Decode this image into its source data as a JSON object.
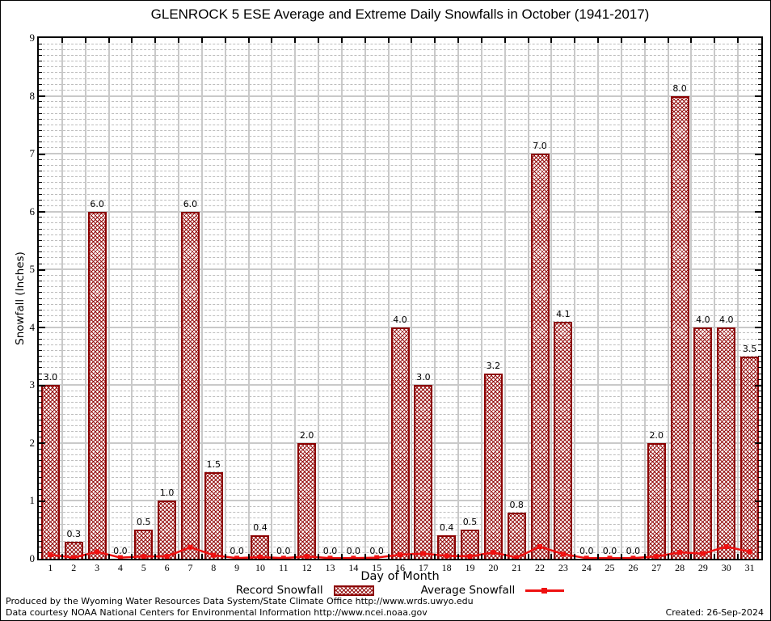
{
  "title": "GLENROCK 5 ESE Average and Extreme Daily Snowfalls in October (1941-2017)",
  "chart_data": {
    "type": "bar",
    "x": [
      1,
      2,
      3,
      4,
      5,
      6,
      7,
      8,
      9,
      10,
      11,
      12,
      13,
      14,
      15,
      16,
      17,
      18,
      19,
      20,
      21,
      22,
      23,
      24,
      25,
      26,
      27,
      28,
      29,
      30,
      31
    ],
    "series": [
      {
        "name": "Record Snowfall",
        "type": "bar",
        "values": [
          3.0,
          0.3,
          6.0,
          0.0,
          0.5,
          1.0,
          6.0,
          1.5,
          0.0,
          0.4,
          0.0,
          2.0,
          0.0,
          0.0,
          0.0,
          4.0,
          3.0,
          0.4,
          0.5,
          3.2,
          0.8,
          7.0,
          4.1,
          0.0,
          0.0,
          0.0,
          2.0,
          8.0,
          4.0,
          4.0,
          3.5
        ]
      },
      {
        "name": "Average Snowfall",
        "type": "line",
        "values": [
          0.07,
          0.02,
          0.12,
          0.02,
          0.04,
          0.04,
          0.2,
          0.06,
          0.01,
          0.03,
          0.01,
          0.04,
          0.01,
          0.01,
          0.02,
          0.07,
          0.09,
          0.05,
          0.04,
          0.11,
          0.02,
          0.21,
          0.08,
          0.01,
          0.01,
          0.01,
          0.04,
          0.11,
          0.09,
          0.21,
          0.12
        ]
      }
    ],
    "xlabel": "Day of Month",
    "ylabel": "Snowfall (Inches)",
    "ylim": [
      0,
      9
    ],
    "yticks": [
      0,
      1,
      2,
      3,
      4,
      5,
      6,
      7,
      8,
      9
    ],
    "grid": "major solid gray at integers, minor dashed gray every 0.1, vertical solid gray at day boundaries",
    "legend_position": "bottom center",
    "bar_border_color": "#8b0000",
    "bar_hatch_color": "#961212",
    "line_color": "#ee1111",
    "grid_major_color": "#c9c9c9",
    "grid_minor_color": "#bdbdbd"
  },
  "footer": {
    "line1": "Produced by the Wyoming Water Resources Data System/State Climate Office http://www.wrds.uwyo.edu",
    "line2": "Data courtesy NOAA National Centers for Environmental Information http://www.ncei.noaa.gov",
    "created": "Created: 26-Sep-2024"
  }
}
